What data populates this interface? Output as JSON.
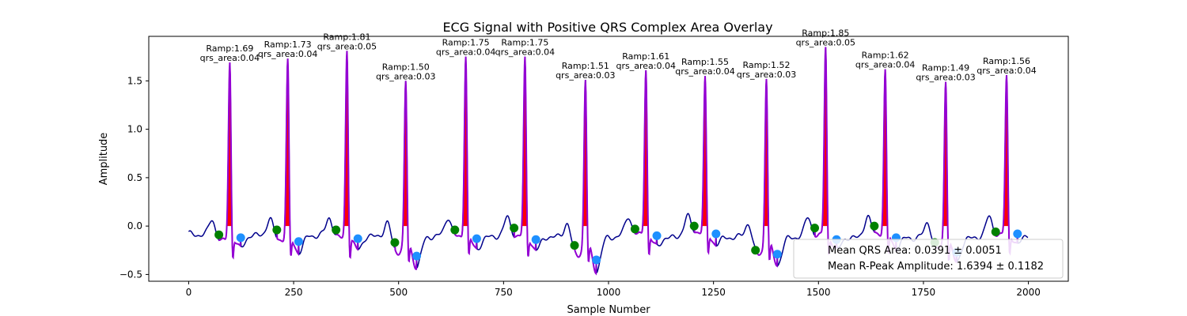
{
  "chart_data": {
    "type": "line",
    "title": "ECG Signal with Positive QRS Complex Area Overlay",
    "xlabel": "Sample Number",
    "ylabel": "Amplitude",
    "xlim": [
      -95,
      2095
    ],
    "ylim": [
      -0.57,
      1.96
    ],
    "xticks": [
      0,
      250,
      500,
      750,
      1000,
      1250,
      1500,
      1750,
      2000
    ],
    "xtick_labels": [
      "0",
      "250",
      "500",
      "750",
      "1000",
      "1250",
      "1500",
      "1750",
      "2000"
    ],
    "yticks": [
      -0.5,
      0.0,
      0.5,
      1.0,
      1.5
    ],
    "ytick_labels": [
      "−0.5",
      "0.0",
      "0.5",
      "1.0",
      "1.5"
    ],
    "grid": false,
    "colors": {
      "signal": "#00008b",
      "qrs_segment": "#9400d3",
      "qrs_fill": "#ff0000",
      "onset_marker": "#008000",
      "offset_marker": "#1e90ff"
    },
    "beats": [
      {
        "r": 98,
        "amp": 1.69,
        "onset": 72,
        "onset_y": -0.09,
        "offset": 124,
        "offset_y": -0.12,
        "label_line1": "Ramp:1.69",
        "label_line2": "qrs_area:0.04"
      },
      {
        "r": 236,
        "amp": 1.73,
        "onset": 210,
        "onset_y": -0.04,
        "offset": 262,
        "offset_y": -0.16,
        "label_line1": "Ramp:1.73",
        "label_line2": "qrs_area:0.04"
      },
      {
        "r": 377,
        "amp": 1.81,
        "onset": 351,
        "onset_y": -0.04,
        "offset": 403,
        "offset_y": -0.13,
        "label_line1": "Ramp:1.81",
        "label_line2": "qrs_area:0.05"
      },
      {
        "r": 517,
        "amp": 1.5,
        "onset": 491,
        "onset_y": -0.17,
        "offset": 543,
        "offset_y": -0.31,
        "label_line1": "Ramp:1.50",
        "label_line2": "qrs_area:0.03"
      },
      {
        "r": 660,
        "amp": 1.75,
        "onset": 634,
        "onset_y": -0.04,
        "offset": 686,
        "offset_y": -0.13,
        "label_line1": "Ramp:1.75",
        "label_line2": "qrs_area:0.04"
      },
      {
        "r": 801,
        "amp": 1.75,
        "onset": 775,
        "onset_y": -0.02,
        "offset": 827,
        "offset_y": -0.14,
        "label_line1": "Ramp:1.75",
        "label_line2": "qrs_area:0.04"
      },
      {
        "r": 945,
        "amp": 1.51,
        "onset": 919,
        "onset_y": -0.2,
        "offset": 971,
        "offset_y": -0.35,
        "label_line1": "Ramp:1.51",
        "label_line2": "qrs_area:0.03"
      },
      {
        "r": 1089,
        "amp": 1.61,
        "onset": 1063,
        "onset_y": -0.03,
        "offset": 1115,
        "offset_y": -0.1,
        "label_line1": "Ramp:1.61",
        "label_line2": "qrs_area:0.04"
      },
      {
        "r": 1230,
        "amp": 1.55,
        "onset": 1204,
        "onset_y": 0.0,
        "offset": 1256,
        "offset_y": -0.08,
        "label_line1": "Ramp:1.55",
        "label_line2": "qrs_area:0.04"
      },
      {
        "r": 1376,
        "amp": 1.52,
        "onset": 1350,
        "onset_y": -0.25,
        "offset": 1402,
        "offset_y": -0.29,
        "label_line1": "Ramp:1.52",
        "label_line2": "qrs_area:0.03"
      },
      {
        "r": 1517,
        "amp": 1.85,
        "onset": 1491,
        "onset_y": -0.02,
        "offset": 1543,
        "offset_y": -0.14,
        "label_line1": "Ramp:1.85",
        "label_line2": "qrs_area:0.05"
      },
      {
        "r": 1659,
        "amp": 1.62,
        "onset": 1633,
        "onset_y": 0.0,
        "offset": 1685,
        "offset_y": -0.12,
        "label_line1": "Ramp:1.62",
        "label_line2": "qrs_area:0.04"
      },
      {
        "r": 1803,
        "amp": 1.49,
        "onset": 1777,
        "onset_y": -0.17,
        "offset": 1829,
        "offset_y": -0.27,
        "label_line1": "Ramp:1.49",
        "label_line2": "qrs_area:0.03"
      },
      {
        "r": 1948,
        "amp": 1.56,
        "onset": 1922,
        "onset_y": -0.06,
        "offset": 1974,
        "offset_y": -0.08,
        "label_line1": "Ramp:1.56",
        "label_line2": "qrs_area:0.04"
      }
    ],
    "legend": {
      "placement": "lower right",
      "entries": [
        "Mean QRS Area: 0.0391 ± 0.0051",
        "Mean R-Peak Amplitude: 1.6394 ± 0.1182"
      ]
    }
  }
}
